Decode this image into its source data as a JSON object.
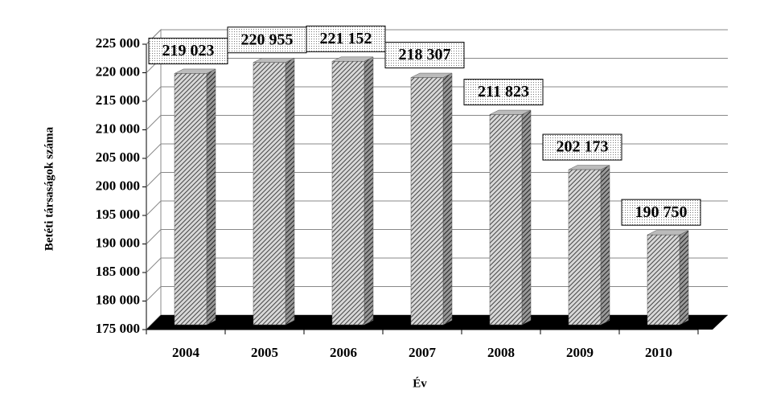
{
  "chart_data": {
    "type": "bar",
    "x_label": "Év",
    "y_label": "Betéti társaságok száma",
    "categories": [
      "2004",
      "2005",
      "2006",
      "2007",
      "2008",
      "2009",
      "2010"
    ],
    "values": [
      219023,
      220955,
      221152,
      218307,
      211823,
      202173,
      190750
    ],
    "value_labels": [
      "219 023",
      "220 955",
      "221 152",
      "218 307",
      "211 823",
      "202 173",
      "190 750"
    ],
    "ylim": [
      175000,
      225000
    ],
    "yticks": [
      {
        "value": 175000,
        "label": "175 000"
      },
      {
        "value": 180000,
        "label": "180 000"
      },
      {
        "value": 185000,
        "label": "185 000"
      },
      {
        "value": 190000,
        "label": "190 000"
      },
      {
        "value": 195000,
        "label": "195 000"
      },
      {
        "value": 200000,
        "label": "200 000"
      },
      {
        "value": 205000,
        "label": "205 000"
      },
      {
        "value": 210000,
        "label": "210 000"
      },
      {
        "value": 215000,
        "label": "215 000"
      },
      {
        "value": 220000,
        "label": "220 000"
      },
      {
        "value": 225000,
        "label": "225 000"
      }
    ],
    "grid": true
  }
}
